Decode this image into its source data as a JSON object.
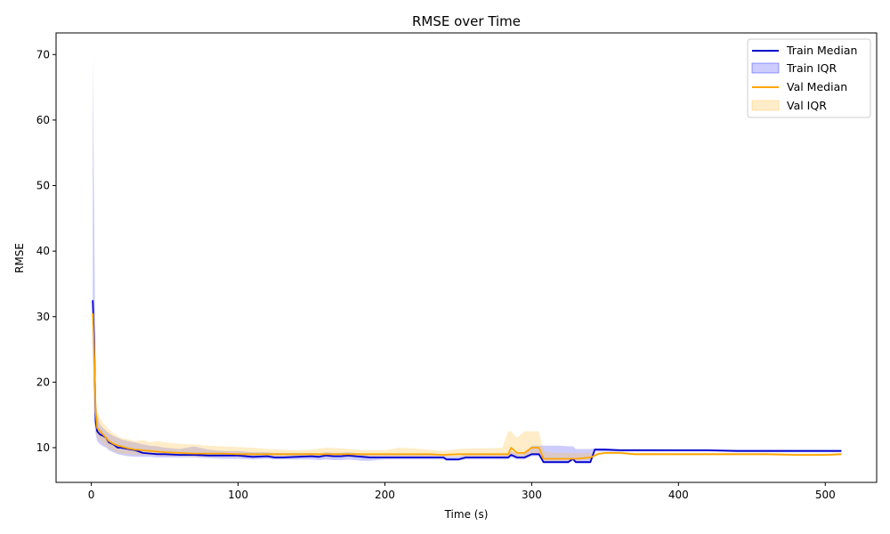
{
  "chart_data": {
    "type": "line",
    "title": "RMSE over Time",
    "xlabel": "Time (s)",
    "ylabel": "RMSE",
    "xlim": [
      -24,
      535
    ],
    "ylim": [
      4.7,
      73.3
    ],
    "xticks": [
      0,
      100,
      200,
      300,
      400,
      500
    ],
    "yticks": [
      10,
      20,
      30,
      40,
      50,
      60,
      70
    ],
    "grid": false,
    "legend_position": "top-right",
    "colors": {
      "train": "#0000cc",
      "train_band": "#0000ff",
      "val": "#ffa500",
      "val_band": "#ffc44d"
    },
    "series": [
      {
        "name": "Train Median",
        "x": [
          1,
          2,
          3,
          4,
          6,
          8,
          10,
          12,
          15,
          18,
          20,
          25,
          30,
          35,
          40,
          45,
          50,
          60,
          70,
          80,
          90,
          100,
          110,
          120,
          125,
          130,
          140,
          150,
          155,
          160,
          165,
          170,
          175,
          180,
          185,
          190,
          200,
          210,
          220,
          230,
          240,
          242,
          250,
          255,
          260,
          270,
          280,
          284,
          286,
          290,
          295,
          300,
          305,
          308,
          315,
          320,
          325,
          328,
          330,
          335,
          340,
          343,
          345,
          350,
          360,
          370,
          380,
          400,
          420,
          440,
          460,
          480,
          500,
          511
        ],
        "values": [
          32.5,
          26.0,
          14.0,
          12.5,
          12.0,
          11.8,
          11.5,
          10.8,
          10.5,
          10.0,
          10.0,
          9.8,
          9.6,
          9.2,
          9.1,
          9.0,
          9.0,
          8.9,
          8.9,
          8.8,
          8.8,
          8.8,
          8.6,
          8.7,
          8.5,
          8.5,
          8.6,
          8.7,
          8.6,
          8.8,
          8.7,
          8.7,
          8.8,
          8.7,
          8.6,
          8.5,
          8.5,
          8.5,
          8.5,
          8.5,
          8.5,
          8.2,
          8.2,
          8.5,
          8.5,
          8.5,
          8.5,
          8.5,
          8.9,
          8.5,
          8.5,
          9.0,
          9.0,
          7.8,
          7.8,
          7.8,
          7.8,
          8.3,
          7.8,
          7.8,
          7.8,
          9.7,
          9.7,
          9.7,
          9.6,
          9.6,
          9.6,
          9.6,
          9.6,
          9.5,
          9.5,
          9.5,
          9.5,
          9.5
        ]
      },
      {
        "name": "Train IQR",
        "x": [
          1,
          2,
          3,
          4,
          6,
          8,
          10,
          12,
          15,
          18,
          20,
          25,
          30,
          35,
          40,
          45,
          50,
          60,
          70,
          80,
          90,
          100,
          110,
          120,
          125,
          130,
          140,
          150,
          155,
          160,
          165,
          170,
          175,
          180,
          185,
          190,
          200,
          210,
          220,
          230,
          240,
          242,
          250,
          255,
          260,
          270,
          280,
          284,
          286,
          290,
          295,
          300,
          305,
          308,
          315,
          320,
          325,
          328,
          330,
          335,
          340,
          343,
          345,
          350,
          360,
          370,
          380,
          400,
          420,
          440,
          460,
          480,
          500,
          511
        ],
        "lower": [
          26.0,
          14.0,
          12.0,
          11.0,
          10.5,
          10.2,
          10.0,
          9.6,
          9.3,
          9.0,
          8.9,
          8.7,
          8.6,
          8.6,
          8.6,
          8.5,
          8.5,
          8.5,
          8.5,
          8.4,
          8.3,
          8.3,
          8.2,
          8.3,
          8.2,
          8.2,
          8.2,
          8.2,
          8.1,
          8.2,
          8.1,
          8.1,
          8.2,
          8.1,
          8.0,
          8.0,
          8.2,
          8.2,
          8.2,
          8.2,
          8.2,
          8.0,
          8.0,
          8.2,
          8.2,
          8.2,
          8.2,
          8.2,
          8.5,
          8.2,
          8.2,
          8.7,
          8.7,
          7.6,
          7.6,
          7.6,
          7.6,
          8.0,
          7.6,
          7.6,
          7.6,
          9.4,
          9.4,
          9.4,
          9.4,
          9.4,
          9.4,
          9.4,
          9.4,
          9.3,
          9.3,
          9.3,
          9.3,
          9.3
        ],
        "upper": [
          70.0,
          45.0,
          17.0,
          15.0,
          13.5,
          13.0,
          12.6,
          12.2,
          11.8,
          11.5,
          11.3,
          11.0,
          10.8,
          10.5,
          10.3,
          10.2,
          10.0,
          9.8,
          10.2,
          9.7,
          9.5,
          9.5,
          9.3,
          9.3,
          9.2,
          9.2,
          9.2,
          9.2,
          9.1,
          9.3,
          9.2,
          9.2,
          9.3,
          9.2,
          9.1,
          9.0,
          9.0,
          9.0,
          9.0,
          9.0,
          8.9,
          8.7,
          8.7,
          8.9,
          8.9,
          8.9,
          8.9,
          8.9,
          9.5,
          9.0,
          9.0,
          10.3,
          10.3,
          10.3,
          10.3,
          10.3,
          10.2,
          10.2,
          9.8,
          9.8,
          9.8,
          9.9,
          9.9,
          9.9,
          9.8,
          9.8,
          9.8,
          9.7,
          9.7,
          9.7,
          9.7,
          9.7,
          9.7,
          9.7
        ]
      },
      {
        "name": "Val Median",
        "x": [
          1,
          2,
          3,
          4,
          6,
          8,
          10,
          12,
          15,
          18,
          20,
          25,
          30,
          35,
          40,
          45,
          50,
          60,
          70,
          80,
          90,
          100,
          110,
          120,
          130,
          140,
          150,
          160,
          170,
          180,
          190,
          200,
          210,
          220,
          230,
          240,
          250,
          260,
          270,
          280,
          284,
          286,
          290,
          295,
          300,
          305,
          308,
          315,
          320,
          330,
          340,
          345,
          350,
          360,
          370,
          380,
          400,
          420,
          440,
          460,
          480,
          500,
          511
        ],
        "values": [
          30.5,
          24.0,
          15.5,
          13.0,
          12.5,
          12.0,
          11.5,
          11.0,
          10.6,
          10.3,
          10.2,
          9.9,
          9.7,
          9.6,
          9.5,
          9.4,
          9.3,
          9.2,
          9.1,
          9.1,
          9.1,
          9.0,
          9.0,
          9.0,
          9.0,
          9.0,
          9.0,
          9.0,
          9.0,
          9.0,
          9.0,
          9.0,
          9.0,
          9.0,
          9.0,
          8.9,
          9.0,
          9.0,
          9.0,
          9.0,
          9.0,
          10.0,
          9.2,
          9.2,
          10.0,
          10.0,
          8.3,
          8.3,
          8.3,
          8.3,
          8.5,
          9.0,
          9.2,
          9.2,
          9.0,
          9.0,
          9.0,
          9.0,
          9.0,
          9.0,
          8.9,
          8.9,
          9.0
        ]
      },
      {
        "name": "Val IQR",
        "x": [
          1,
          2,
          3,
          4,
          6,
          8,
          10,
          12,
          15,
          18,
          20,
          25,
          30,
          35,
          40,
          45,
          50,
          60,
          70,
          80,
          90,
          100,
          110,
          120,
          130,
          140,
          150,
          160,
          170,
          180,
          190,
          200,
          210,
          220,
          230,
          240,
          250,
          260,
          270,
          280,
          284,
          286,
          290,
          295,
          300,
          305,
          308,
          315,
          320,
          330,
          340,
          345,
          350,
          360,
          370,
          380,
          400,
          420,
          440,
          460,
          480,
          500,
          511
        ],
        "lower": [
          24.0,
          16.0,
          12.5,
          11.5,
          11.0,
          10.5,
          10.2,
          9.8,
          9.5,
          9.2,
          9.1,
          9.0,
          8.9,
          8.9,
          8.8,
          8.8,
          8.7,
          8.7,
          8.6,
          8.6,
          8.6,
          8.6,
          8.6,
          8.6,
          8.6,
          8.6,
          8.6,
          8.6,
          8.6,
          8.6,
          8.6,
          8.6,
          8.6,
          8.6,
          8.6,
          8.6,
          8.6,
          8.6,
          8.6,
          8.6,
          8.6,
          8.9,
          8.6,
          8.6,
          8.9,
          8.9,
          8.0,
          8.0,
          8.0,
          8.0,
          8.2,
          8.8,
          9.0,
          9.0,
          8.8,
          8.8,
          8.8,
          8.8,
          8.8,
          8.8,
          8.7,
          8.7,
          8.8
        ],
        "upper": [
          33.0,
          30.0,
          17.0,
          15.5,
          14.5,
          13.8,
          13.3,
          12.8,
          12.2,
          11.8,
          11.5,
          11.3,
          11.0,
          11.2,
          10.8,
          11.0,
          10.8,
          10.6,
          10.5,
          10.3,
          10.2,
          10.1,
          10.0,
          9.8,
          9.7,
          9.6,
          9.7,
          10.0,
          9.9,
          9.7,
          9.6,
          9.6,
          10.0,
          9.9,
          9.7,
          9.5,
          9.8,
          9.9,
          9.9,
          10.0,
          12.5,
          12.5,
          11.5,
          12.5,
          12.5,
          12.5,
          9.5,
          9.2,
          9.2,
          9.2,
          9.2,
          9.3,
          9.4,
          9.4,
          9.2,
          9.2,
          9.2,
          9.2,
          9.2,
          9.2,
          9.1,
          9.1,
          9.2
        ]
      }
    ]
  }
}
